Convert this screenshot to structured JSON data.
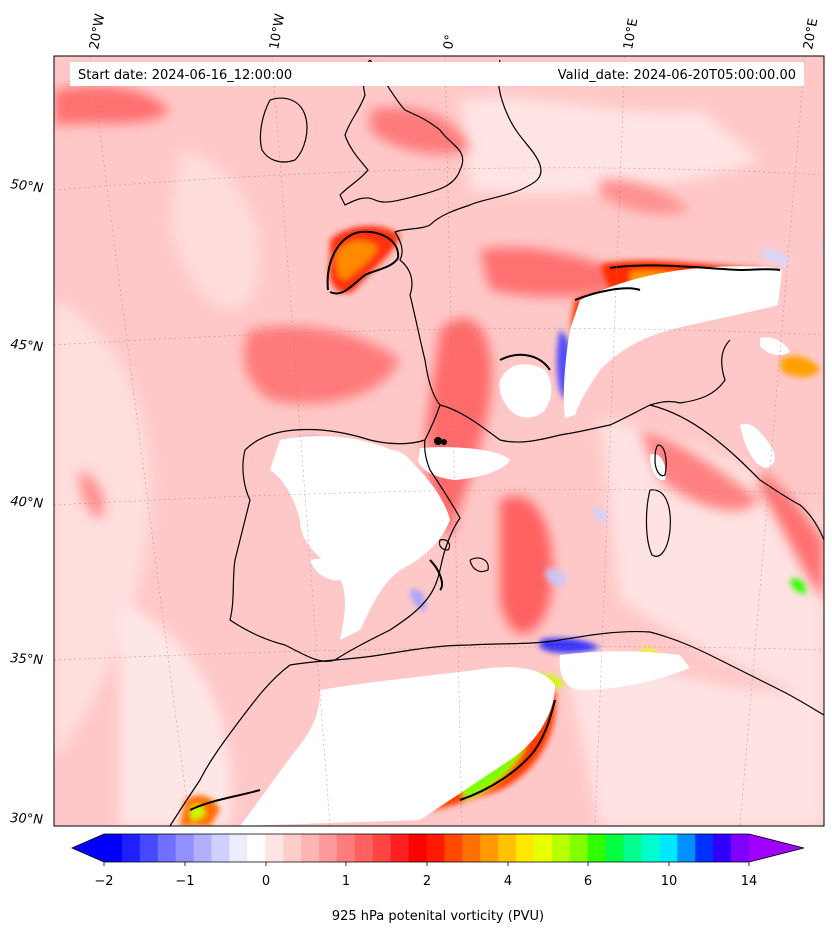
{
  "header": {
    "start_date": "Start date: 2024-06-16_12:00:00",
    "valid_date": "Valid_date: 2024-06-20T05:00:00.00"
  },
  "axes": {
    "lon_labels": [
      "20°W",
      "10°W",
      "0°",
      "10°E",
      "20°E"
    ],
    "lat_labels": [
      "50°N",
      "45°N",
      "40°N",
      "35°N",
      "30°N"
    ]
  },
  "colorbar": {
    "ticks": [
      "−2",
      "−1",
      "0",
      "1",
      "2",
      "4",
      "6",
      "10",
      "14"
    ],
    "label": "925 hPa potenital vorticity (PVU)",
    "colors": [
      "#0000ff",
      "#2020ff",
      "#4848ff",
      "#7070ff",
      "#9090ff",
      "#b0b0ff",
      "#d0d0ff",
      "#ececff",
      "#ffffff",
      "#ffe4e4",
      "#ffcccc",
      "#ffb4b4",
      "#ff9898",
      "#ff7c7c",
      "#ff6060",
      "#ff4444",
      "#ff2020",
      "#ff0000",
      "#ff1a00",
      "#ff4800",
      "#ff7000",
      "#ff9a00",
      "#ffc200",
      "#ffe800",
      "#e8ff00",
      "#b8ff00",
      "#80ff00",
      "#30ff00",
      "#00ff40",
      "#00ff90",
      "#00ffd0",
      "#00e8ff",
      "#0090ff",
      "#0030ff",
      "#3000ff",
      "#8000ff"
    ],
    "extend_low": "#0000ff",
    "extend_high": "#a000ff"
  }
}
